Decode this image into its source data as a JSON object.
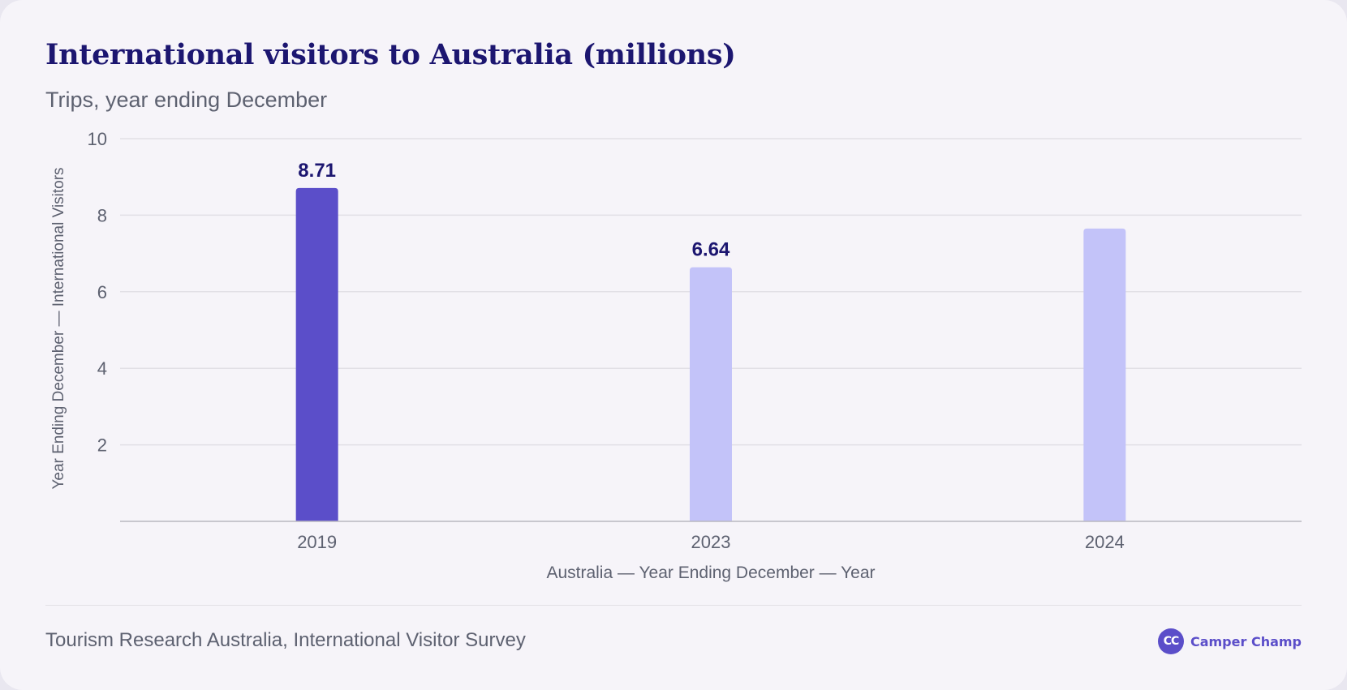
{
  "header": {
    "title": "International visitors to Australia (millions)",
    "subtitle": "Trips, year ending December"
  },
  "footer": {
    "source": "Tourism Research Australia, International Visitor Survey",
    "brand_name": "Camper Champ",
    "brand_logo_text": "CC"
  },
  "colors": {
    "highlight_bar": "#5b4ec9",
    "muted_bar": "#c3c3f9",
    "title": "#1c1670",
    "value_label": "#1c1670",
    "axis_text": "#5d6170",
    "gridline": "#e2e0e6",
    "baseline": "#b9b8bf",
    "brand": "#5b4ec9"
  },
  "chart_data": {
    "type": "bar",
    "categories": [
      "2019",
      "2023",
      "2024"
    ],
    "values": [
      8.71,
      6.64,
      7.65
    ],
    "value_labels": [
      "8.71",
      "6.64",
      ""
    ],
    "highlighted": [
      true,
      false,
      false
    ],
    "xlabel": "Australia — Year Ending December — Year",
    "ylabel": "Year Ending December — International Visitors",
    "ylim": [
      0,
      10
    ],
    "yticks": [
      2,
      4,
      6,
      8,
      10
    ],
    "ytick_labels": [
      "2",
      "4",
      "6",
      "8",
      "10"
    ],
    "grid": true,
    "legend": "none"
  }
}
